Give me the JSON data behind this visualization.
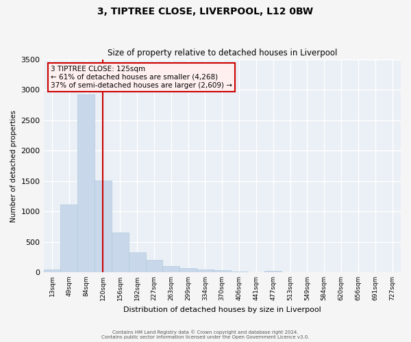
{
  "title": "3, TIPTREE CLOSE, LIVERPOOL, L12 0BW",
  "subtitle": "Size of property relative to detached houses in Liverpool",
  "xlabel": "Distribution of detached houses by size in Liverpool",
  "ylabel": "Number of detached properties",
  "bar_color": "#c8d8ea",
  "bar_edge_color": "#b0c8dc",
  "background_color": "#eaf0f6",
  "grid_color": "#ffffff",
  "vline_color": "#cc0000",
  "annotation_line1": "3 TIPTREE CLOSE: 125sqm",
  "annotation_line2": "← 61% of detached houses are smaller (4,268)",
  "annotation_line3": "37% of semi-detached houses are larger (2,609) →",
  "annotation_box_facecolor": "#fff0f0",
  "annotation_box_edge": "#cc0000",
  "tick_labels": [
    "13sqm",
    "49sqm",
    "84sqm",
    "120sqm",
    "156sqm",
    "192sqm",
    "227sqm",
    "263sqm",
    "299sqm",
    "334sqm",
    "370sqm",
    "406sqm",
    "441sqm",
    "477sqm",
    "513sqm",
    "549sqm",
    "584sqm",
    "620sqm",
    "656sqm",
    "691sqm",
    "727sqm"
  ],
  "bar_heights": [
    48,
    1110,
    2930,
    1510,
    650,
    330,
    200,
    100,
    70,
    48,
    30,
    5,
    2,
    22,
    2,
    0,
    0,
    0,
    0,
    0,
    0
  ],
  "ylim": [
    0,
    3500
  ],
  "yticks": [
    0,
    500,
    1000,
    1500,
    2000,
    2500,
    3000,
    3500
  ],
  "vline_label_idx": 3,
  "footer_line1": "Contains HM Land Registry data © Crown copyright and database right 2024.",
  "footer_line2": "Contains public sector information licensed under the Open Government Licence v3.0."
}
